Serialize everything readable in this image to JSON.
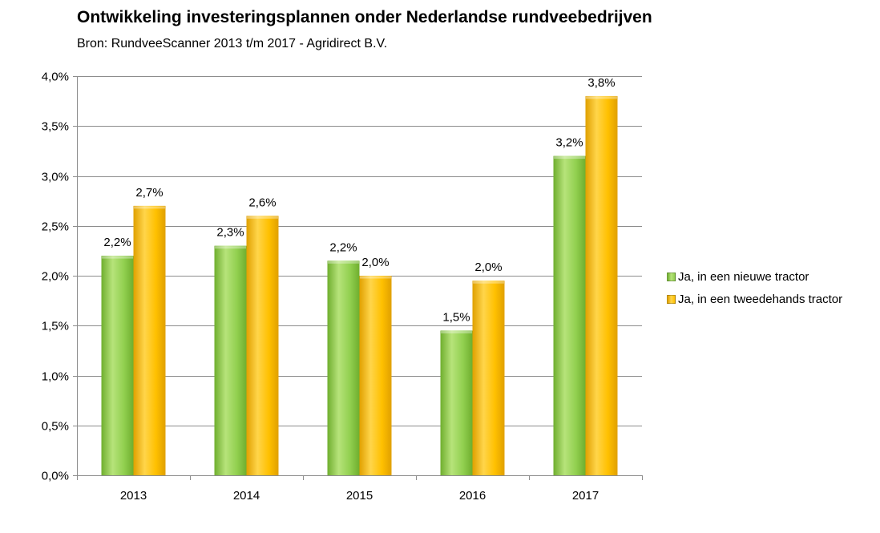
{
  "chart_data": {
    "type": "bar",
    "title": "Ontwikkeling investeringsplannen onder Nederlandse rundveebedrijven",
    "subtitle": "Bron: RundveeScanner 2013 t/m 2017 - Agridirect B.V.",
    "categories": [
      "2013",
      "2014",
      "2015",
      "2016",
      "2017"
    ],
    "series": [
      {
        "name": "Ja, in een nieuwe tractor",
        "values": [
          2.2,
          2.3,
          2.15,
          1.45,
          3.2
        ],
        "labels": [
          "2,2%",
          "2,3%",
          "2,2%",
          "1,5%",
          "3,2%"
        ],
        "color": "#92D050",
        "color_light": "#B6E37A",
        "color_dark": "#6FAE2E"
      },
      {
        "name": "Ja, in een tweedehands tractor",
        "values": [
          2.7,
          2.6,
          2.0,
          1.95,
          3.8
        ],
        "labels": [
          "2,7%",
          "2,6%",
          "2,0%",
          "2,0%",
          "3,8%"
        ],
        "color": "#FFC000",
        "color_light": "#FFD54A",
        "color_dark": "#E0A000"
      }
    ],
    "ylim": [
      0,
      4.0
    ],
    "yticks": [
      0,
      0.5,
      1.0,
      1.5,
      2.0,
      2.5,
      3.0,
      3.5,
      4.0
    ],
    "ytick_labels": [
      "0,0%",
      "0,5%",
      "1,0%",
      "1,5%",
      "2,0%",
      "2,5%",
      "3,0%",
      "3,5%",
      "4,0%"
    ],
    "xlabel": "",
    "ylabel": "",
    "grid": true,
    "legend_position": "right"
  }
}
